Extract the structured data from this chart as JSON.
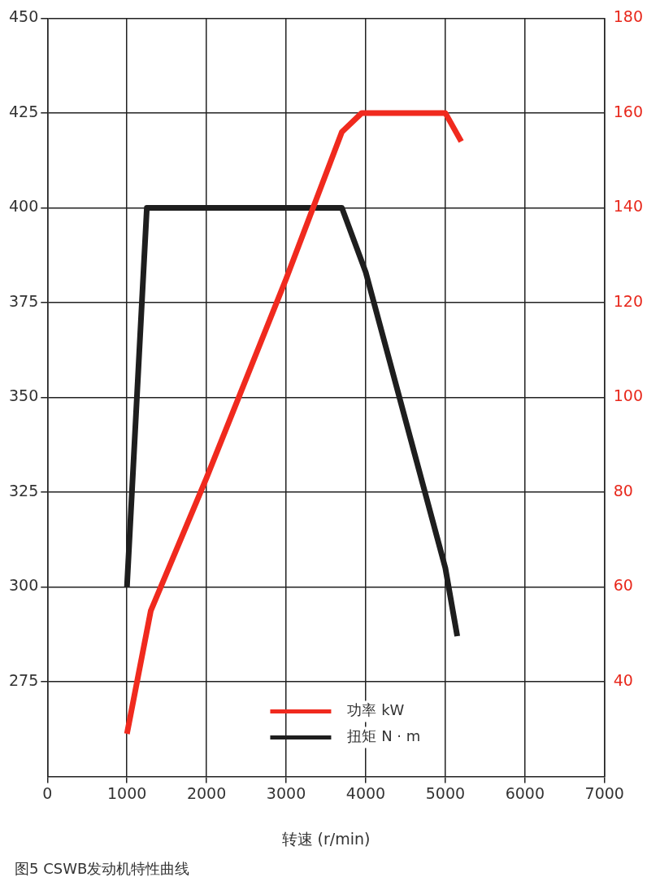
{
  "chart_data": {
    "type": "line",
    "xlabel": "转速 (r/min)",
    "annotations": [
      "图5 CSWB发动机特性曲线"
    ],
    "xlim": [
      0,
      7000
    ],
    "xticks": [
      0,
      1000,
      2000,
      3000,
      4000,
      5000,
      6000,
      7000
    ],
    "ylim": [
      250,
      450
    ],
    "yticks": [
      275,
      300,
      325,
      350,
      375,
      400,
      425,
      450
    ],
    "y2lim": [
      20,
      180
    ],
    "y2ticks": [
      40,
      60,
      80,
      100,
      120,
      140,
      160,
      180
    ],
    "grid": true,
    "legend": "bottom",
    "marker": "none",
    "line_style": "solid",
    "series": [
      {
        "name": "功率 kW",
        "color": "#f02a1e",
        "axis": "y2",
        "x": [
          1000,
          1300,
          2000,
          3000,
          3700,
          3950,
          5000,
          5200
        ],
        "values": [
          29,
          55,
          83,
          125,
          156,
          160,
          160,
          154
        ]
      },
      {
        "name": "扭矩 N · m",
        "color": "#1e1e1e",
        "axis": "y",
        "x": [
          1000,
          1250,
          3700,
          4000,
          5000,
          5150
        ],
        "values": [
          300,
          400,
          400,
          383,
          305,
          287
        ]
      }
    ]
  }
}
